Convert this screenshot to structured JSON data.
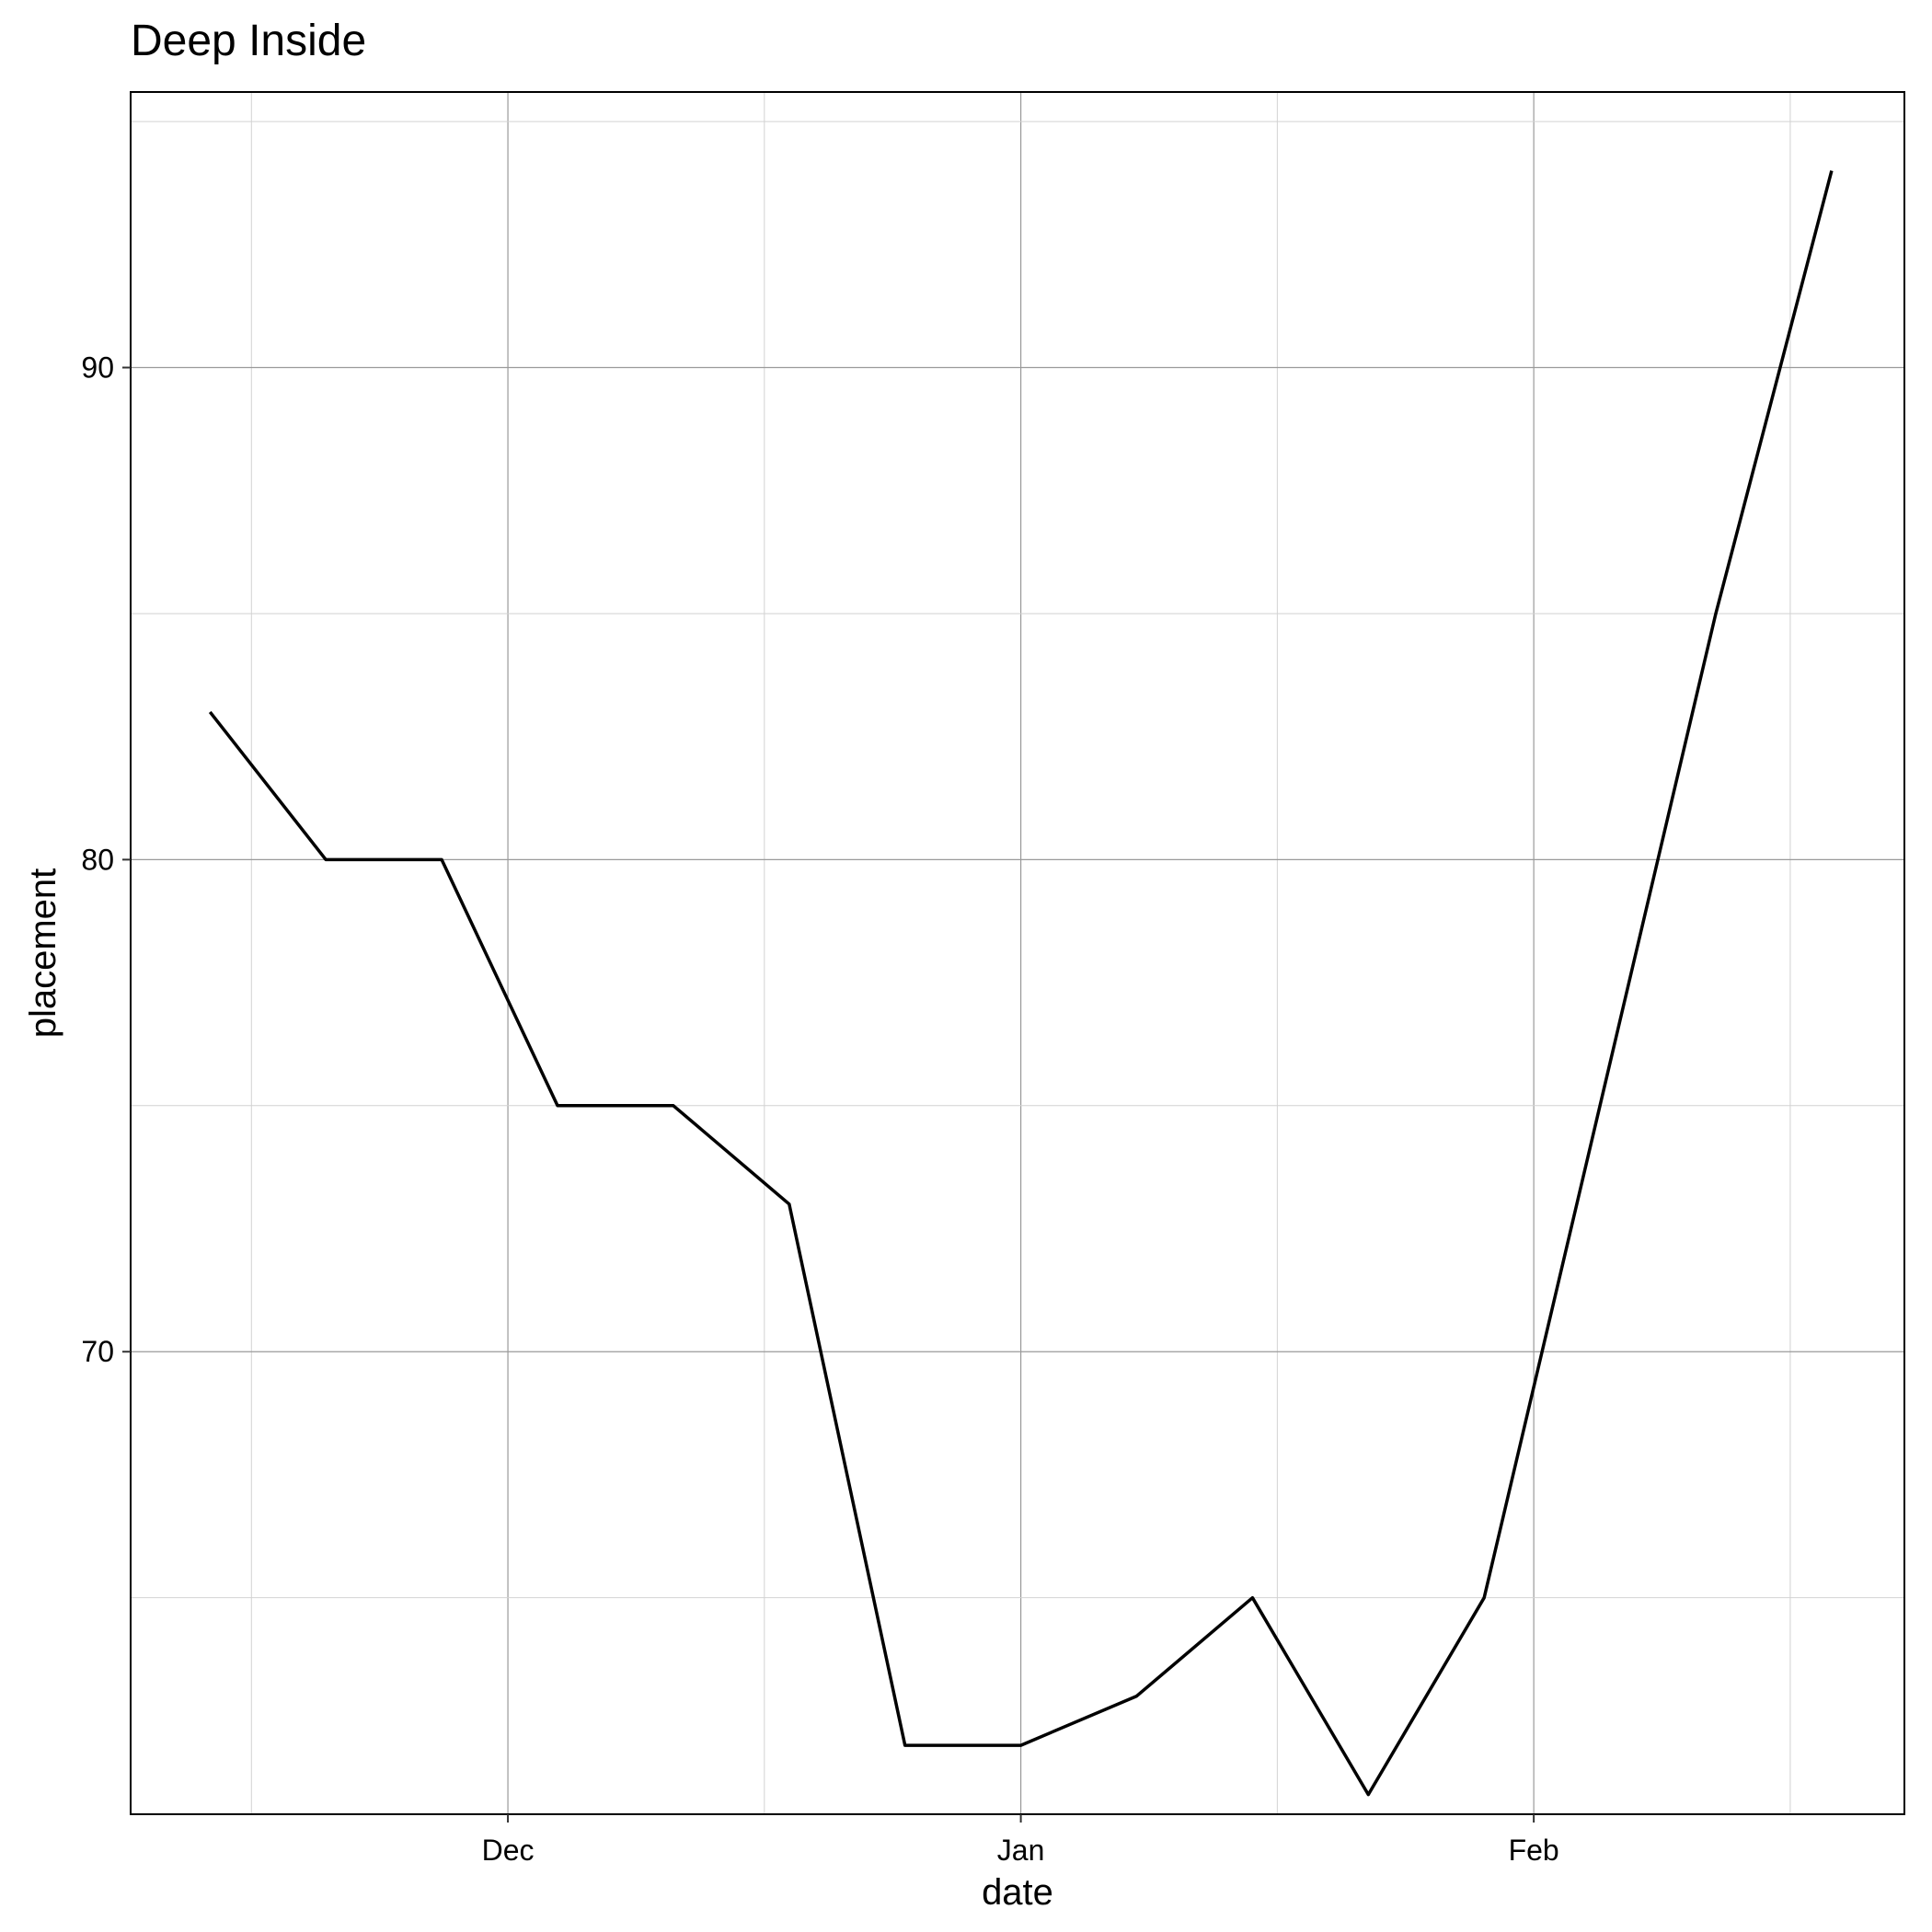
{
  "chart_data": {
    "type": "line",
    "title": "Deep Inside",
    "xlabel": "date",
    "ylabel": "placement",
    "x_ticks": [
      {
        "label": "Dec",
        "day": 30
      },
      {
        "label": "Jan",
        "day": 61
      },
      {
        "label": "Feb",
        "day": 92
      }
    ],
    "y_ticks": [
      70,
      80,
      90
    ],
    "xlim_days": [
      7.2,
      114.4
    ],
    "ylim": [
      60.6,
      95.6
    ],
    "x_start_date": "Nov 1",
    "series": [
      {
        "name": "Deep Inside",
        "color": "#000000",
        "points": [
          {
            "day": 12,
            "value": 83
          },
          {
            "day": 19,
            "value": 80
          },
          {
            "day": 26,
            "value": 80
          },
          {
            "day": 33,
            "value": 75
          },
          {
            "day": 40,
            "value": 75
          },
          {
            "day": 47,
            "value": 73
          },
          {
            "day": 54,
            "value": 62
          },
          {
            "day": 61,
            "value": 62
          },
          {
            "day": 68,
            "value": 63
          },
          {
            "day": 75,
            "value": 65
          },
          {
            "day": 82,
            "value": 61
          },
          {
            "day": 89,
            "value": 65
          },
          {
            "day": 96,
            "value": 75
          },
          {
            "day": 103,
            "value": 85
          },
          {
            "day": 110,
            "value": 94
          }
        ]
      }
    ]
  }
}
